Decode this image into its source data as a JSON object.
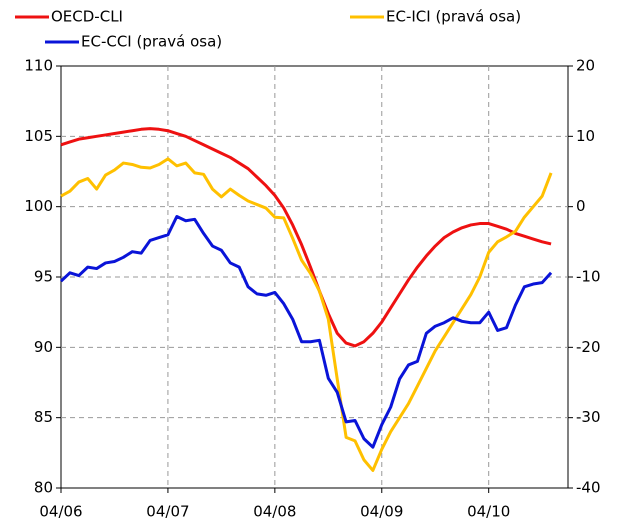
{
  "chart_data": {
    "type": "line",
    "categories": [
      "04/06",
      null,
      null,
      null,
      null,
      null,
      null,
      null,
      null,
      null,
      null,
      null,
      "04/07",
      null,
      null,
      null,
      null,
      null,
      null,
      null,
      null,
      null,
      null,
      null,
      "04/08",
      null,
      null,
      null,
      null,
      null,
      null,
      null,
      null,
      null,
      null,
      null,
      "04/09",
      null,
      null,
      null,
      null,
      null,
      null,
      null,
      null,
      null,
      null,
      null,
      "04/10",
      null,
      null,
      null,
      null,
      null,
      null,
      null
    ],
    "series": [
      {
        "name": "OECD-CLI",
        "color": "#ee1111",
        "axis": "y",
        "values": [
          104.4,
          104.6,
          104.8,
          104.9,
          105.0,
          105.1,
          105.2,
          105.3,
          105.4,
          105.5,
          105.55,
          105.5,
          105.4,
          105.2,
          105.0,
          104.7,
          104.4,
          104.1,
          103.8,
          103.5,
          103.1,
          102.7,
          102.1,
          101.5,
          100.8,
          99.9,
          98.7,
          97.3,
          95.7,
          94.0,
          92.4,
          91.0,
          90.3,
          90.1,
          90.4,
          91.0,
          91.8,
          92.8,
          93.8,
          94.8,
          95.7,
          96.5,
          97.2,
          97.8,
          98.2,
          98.5,
          98.7,
          98.8,
          98.8,
          98.6,
          98.4,
          98.1,
          97.9,
          97.7,
          97.5,
          97.35
        ]
      },
      {
        "name": "EC-ICI (pravá osa)",
        "color": "#ffc000",
        "axis": "y2",
        "values": [
          1.5,
          2.2,
          3.5,
          4.0,
          2.5,
          4.5,
          5.2,
          6.2,
          6.0,
          5.6,
          5.5,
          6.0,
          6.8,
          5.8,
          6.2,
          4.8,
          4.6,
          2.5,
          1.4,
          2.5,
          1.6,
          0.8,
          0.3,
          -0.2,
          -1.5,
          -1.6,
          -4.5,
          -7.6,
          -9.5,
          -12.0,
          -16.0,
          -24.5,
          -32.8,
          -33.3,
          -36.0,
          -37.5,
          -34.5,
          -32.0,
          -30.0,
          -28.0,
          -25.5,
          -23.0,
          -20.5,
          -18.5,
          -16.5,
          -14.5,
          -12.5,
          -10.0,
          -6.5,
          -5.0,
          -4.3,
          -3.5,
          -1.5,
          0.0,
          1.5,
          4.8
        ]
      },
      {
        "name": "EC-CCI (pravá osa)",
        "color": "#0a14d8",
        "axis": "y2",
        "values": [
          -10.6,
          -9.4,
          -9.8,
          -8.6,
          -8.8,
          -8.0,
          -7.8,
          -7.2,
          -6.4,
          -6.6,
          -4.8,
          -4.4,
          -4.0,
          -1.4,
          -2.0,
          -1.8,
          -3.8,
          -5.6,
          -6.2,
          -8.0,
          -8.6,
          -11.4,
          -12.4,
          -12.6,
          -12.2,
          -13.8,
          -16.0,
          -19.2,
          -19.2,
          -19.0,
          -24.4,
          -26.4,
          -30.6,
          -30.4,
          -33.0,
          -34.2,
          -31.0,
          -28.5,
          -24.5,
          -22.5,
          -22.0,
          -18.0,
          -17.0,
          -16.5,
          -15.8,
          -16.3,
          -16.5,
          -16.5,
          -15.0,
          -17.6,
          -17.2,
          -14.0,
          -11.4,
          -11.0,
          -10.8,
          -9.4
        ]
      }
    ],
    "ylim": [
      80,
      110
    ],
    "yticks": [
      80,
      85,
      90,
      95,
      100,
      105,
      110
    ],
    "y2lim": [
      -40,
      20
    ],
    "y2ticks": [
      -40,
      -30,
      -20,
      -10,
      0,
      10,
      20
    ],
    "grid": true
  }
}
